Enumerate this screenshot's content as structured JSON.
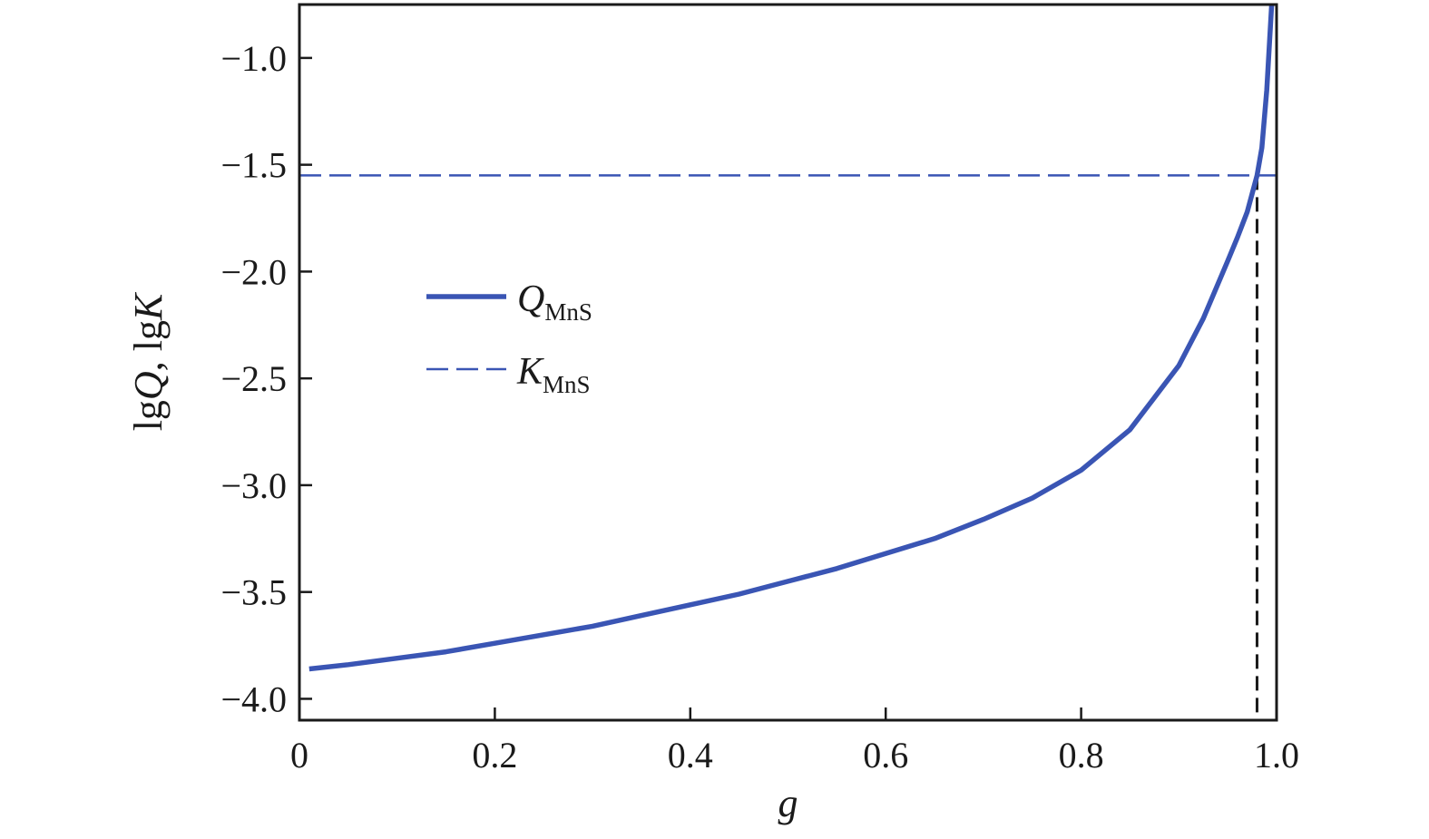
{
  "chart_data": {
    "type": "line",
    "xlabel": "g",
    "ylabel": {
      "parts": [
        {
          "text": "lg",
          "italic": false
        },
        {
          "text": "Q",
          "italic": true
        },
        {
          "text": ", lg",
          "italic": false
        },
        {
          "text": "K",
          "italic": true
        }
      ]
    },
    "xlim": [
      0,
      1.0
    ],
    "ylim": [
      -4.1,
      -0.75
    ],
    "x_ticks": [
      0,
      0.2,
      0.4,
      0.6,
      0.8,
      1.0
    ],
    "x_tick_labels": [
      "0",
      "0.2",
      "0.4",
      "0.6",
      "0.8",
      "1.0"
    ],
    "y_ticks": [
      -1.0,
      -1.5,
      -2.0,
      -2.5,
      -3.0,
      -3.5,
      -4.0
    ],
    "y_tick_labels": [
      "−1.0",
      "−1.5",
      "−2.0",
      "−2.5",
      "−3.0",
      "−3.5",
      "−4.0"
    ],
    "grid": false,
    "legend": "upper-left",
    "series": [
      {
        "name": "Q",
        "name_sub": "MnS",
        "style": "solid",
        "color": "#3a55b4",
        "x": [
          0.01,
          0.05,
          0.1,
          0.15,
          0.2,
          0.25,
          0.3,
          0.35,
          0.4,
          0.45,
          0.5,
          0.55,
          0.6,
          0.65,
          0.7,
          0.75,
          0.8,
          0.85,
          0.9,
          0.925,
          0.95,
          0.96,
          0.97,
          0.98,
          0.985,
          0.99,
          0.995
        ],
        "y": [
          -3.86,
          -3.84,
          -3.81,
          -3.78,
          -3.74,
          -3.7,
          -3.66,
          -3.61,
          -3.56,
          -3.51,
          -3.45,
          -3.39,
          -3.32,
          -3.25,
          -3.16,
          -3.06,
          -2.93,
          -2.74,
          -2.44,
          -2.22,
          -1.95,
          -1.84,
          -1.72,
          -1.55,
          -1.42,
          -1.15,
          -0.75
        ]
      },
      {
        "name": "K",
        "name_sub": "MnS",
        "style": "dashed",
        "color": "#3a55b4",
        "x": [
          0,
          1.0
        ],
        "y": [
          -1.55,
          -1.55
        ]
      }
    ],
    "annotations": [
      {
        "type": "vline",
        "x": 0.98,
        "y_from": -4.1,
        "y_to": -1.55,
        "style": "dashed",
        "color": "#1a1a1a"
      }
    ]
  }
}
